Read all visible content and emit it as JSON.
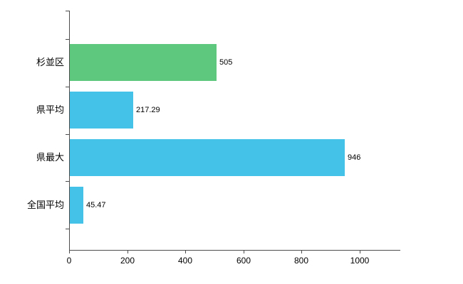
{
  "chart_data": {
    "type": "bar",
    "orientation": "horizontal",
    "title": "",
    "categories": [
      "杉並区",
      "県平均",
      "県最大",
      "全国平均"
    ],
    "values": [
      505,
      217.29,
      946,
      45.47
    ],
    "value_labels": [
      "505",
      "217.29",
      "946",
      "45.47"
    ],
    "bar_colors": [
      "#5ec87f",
      "#45c2e8",
      "#45c2e8",
      "#45c2e8"
    ],
    "xlabel": "",
    "ylabel": "",
    "xlim": [
      0,
      1140
    ],
    "x_ticks": [
      0,
      200,
      400,
      600,
      800,
      1000
    ],
    "grid": false,
    "legend": "none"
  },
  "colors": {
    "green_bar": "#5ec87f",
    "blue_bar": "#45c2e8",
    "axis": "#4d4d4d",
    "text": "#000000",
    "background": "#ffffff"
  }
}
